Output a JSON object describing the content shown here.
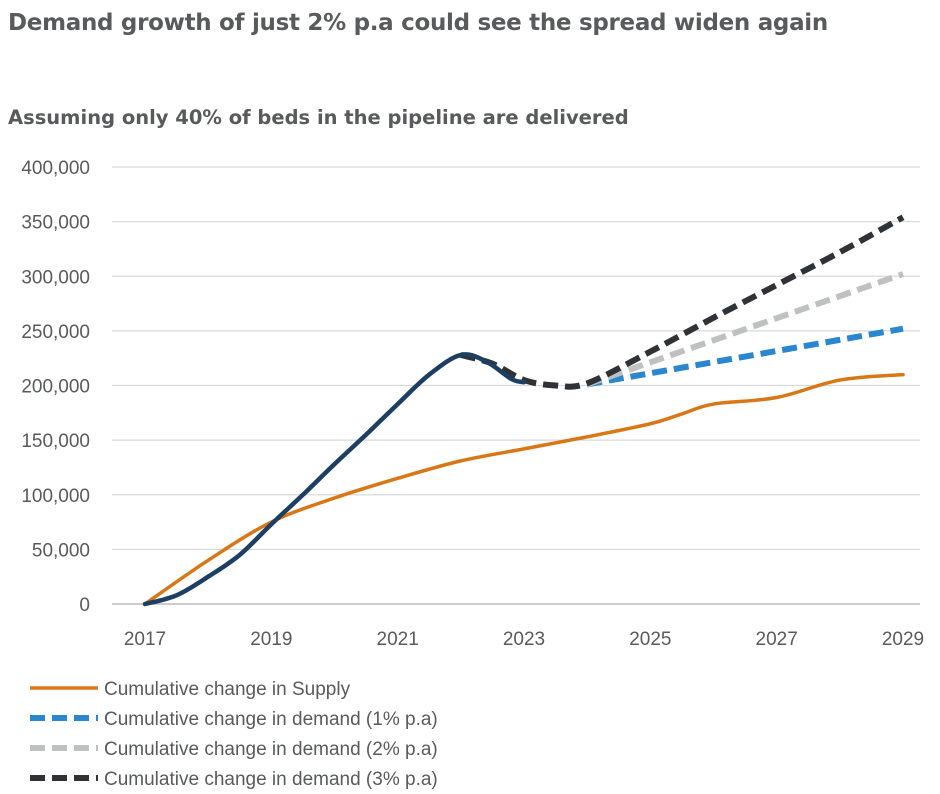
{
  "title": "Demand growth of just 2% p.a could see the spread widen again",
  "subtitle": "Assuming only 40% of beds in the pipeline are delivered",
  "colors": {
    "supply": "#d97716",
    "demand_1": "#2a86cf",
    "demand_2": "#bfc0c2",
    "demand_3": "#2f3338",
    "history": "#1d3f63",
    "grid": "#d9d9d9"
  },
  "chart_data": {
    "type": "line",
    "ylim": [
      0,
      400000
    ],
    "xlim": [
      2017,
      2029
    ],
    "y_ticks": [
      "0",
      "50,000",
      "100,000",
      "150,000",
      "200,000",
      "250,000",
      "300,000",
      "350,000",
      "400,000"
    ],
    "x_ticks": [
      "2017",
      "2019",
      "2021",
      "2023",
      "2025",
      "2027",
      "2029"
    ],
    "grid": "horizontal",
    "legend_position": "bottom-left",
    "series": [
      {
        "name": "Cumulative change in Supply",
        "style": "solid",
        "color": "supply",
        "points": [
          [
            2017,
            0
          ],
          [
            2018,
            40000
          ],
          [
            2019,
            75000
          ],
          [
            2020,
            97000
          ],
          [
            2021,
            115000
          ],
          [
            2022,
            131000
          ],
          [
            2023,
            142000
          ],
          [
            2024,
            153000
          ],
          [
            2025,
            165000
          ],
          [
            2025.5,
            174000
          ],
          [
            2026,
            183000
          ],
          [
            2027,
            189000
          ],
          [
            2028,
            205000
          ],
          [
            2029,
            210000
          ]
        ]
      },
      {
        "name": "Cumulative change in demand (1% p.a)",
        "style": "dashed",
        "color": "demand_1",
        "points": [
          [
            2024,
            201000
          ],
          [
            2029,
            252000
          ]
        ]
      },
      {
        "name": "Cumulative change in demand (2% p.a)",
        "style": "dashed",
        "color": "demand_2",
        "points": [
          [
            2024,
            201000
          ],
          [
            2029,
            302000
          ]
        ]
      },
      {
        "name": "Cumulative change in demand (3% p.a)",
        "style": "dashed",
        "color": "demand_3",
        "points": [
          [
            2022,
            228000
          ],
          [
            2022.5,
            220000
          ],
          [
            2023,
            205000
          ],
          [
            2023.5,
            200000
          ],
          [
            2024,
            202000
          ],
          [
            2025,
            231000
          ],
          [
            2026,
            262000
          ],
          [
            2027,
            292000
          ],
          [
            2028,
            322000
          ],
          [
            2029,
            354000
          ]
        ]
      },
      {
        "style": "solid",
        "color": "history",
        "points": [
          [
            2017,
            0
          ],
          [
            2017.5,
            8000
          ],
          [
            2018,
            25000
          ],
          [
            2018.5,
            45000
          ],
          [
            2019,
            73000
          ],
          [
            2019.5,
            100000
          ],
          [
            2020,
            128000
          ],
          [
            2020.5,
            155000
          ],
          [
            2021,
            183000
          ],
          [
            2021.5,
            210000
          ],
          [
            2022,
            228000
          ],
          [
            2022.4,
            222000
          ],
          [
            2022.8,
            206000
          ],
          [
            2023,
            203000
          ]
        ]
      }
    ]
  }
}
